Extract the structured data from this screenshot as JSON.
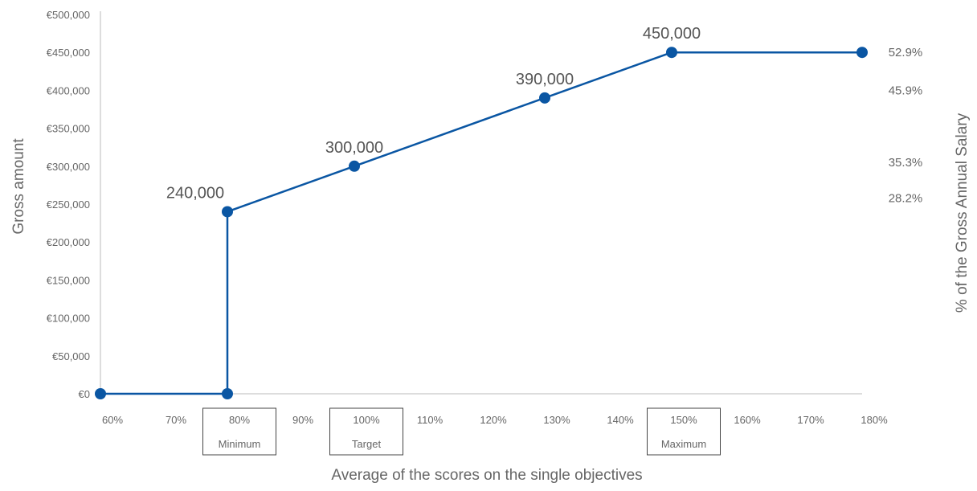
{
  "chart_data": {
    "type": "line",
    "xlabel": "Average of the scores on the single objectives",
    "ylabel": "Gross amount",
    "y2label": "% of the Gross Annual Salary",
    "x_ticks": [
      "60%",
      "70%",
      "80%",
      "90%",
      "100%",
      "110%",
      "120%",
      "130%",
      "140%",
      "150%",
      "160%",
      "170%",
      "180%"
    ],
    "y_ticks": [
      "€0",
      "€50,000",
      "€100,000",
      "€150,000",
      "€200,000",
      "€250,000",
      "€300,000",
      "€350,000",
      "€400,000",
      "€450,000",
      "€500,000"
    ],
    "xlim": [
      60,
      180
    ],
    "ylim": [
      0,
      500000
    ],
    "series": [
      {
        "points": [
          {
            "x": 60,
            "y": 0,
            "label": ""
          },
          {
            "x": 80,
            "y": 0,
            "label": ""
          },
          {
            "x": 80,
            "y": 240000,
            "label": "240,000"
          },
          {
            "x": 100,
            "y": 300000,
            "label": "300,000"
          },
          {
            "x": 130,
            "y": 390000,
            "label": "390,000"
          },
          {
            "x": 150,
            "y": 450000,
            "label": "450,000"
          },
          {
            "x": 180,
            "y": 450000,
            "label": ""
          }
        ],
        "color": "#0a56a3"
      }
    ],
    "right_axis_labels": [
      {
        "y": 450000,
        "text": "52.9%"
      },
      {
        "y": 400000,
        "text": "45.9%"
      },
      {
        "y": 305000,
        "text": "35.3%"
      },
      {
        "y": 258000,
        "text": "28.2%"
      }
    ],
    "markers": [
      {
        "x": 80,
        "text": "Minimum"
      },
      {
        "x": 100,
        "text": "Target"
      },
      {
        "x": 150,
        "text": "Maximum"
      }
    ],
    "colors": {
      "line": "#0a56a3",
      "axis": "#bbbbbb",
      "text": "#666666",
      "box": "#444444"
    }
  }
}
